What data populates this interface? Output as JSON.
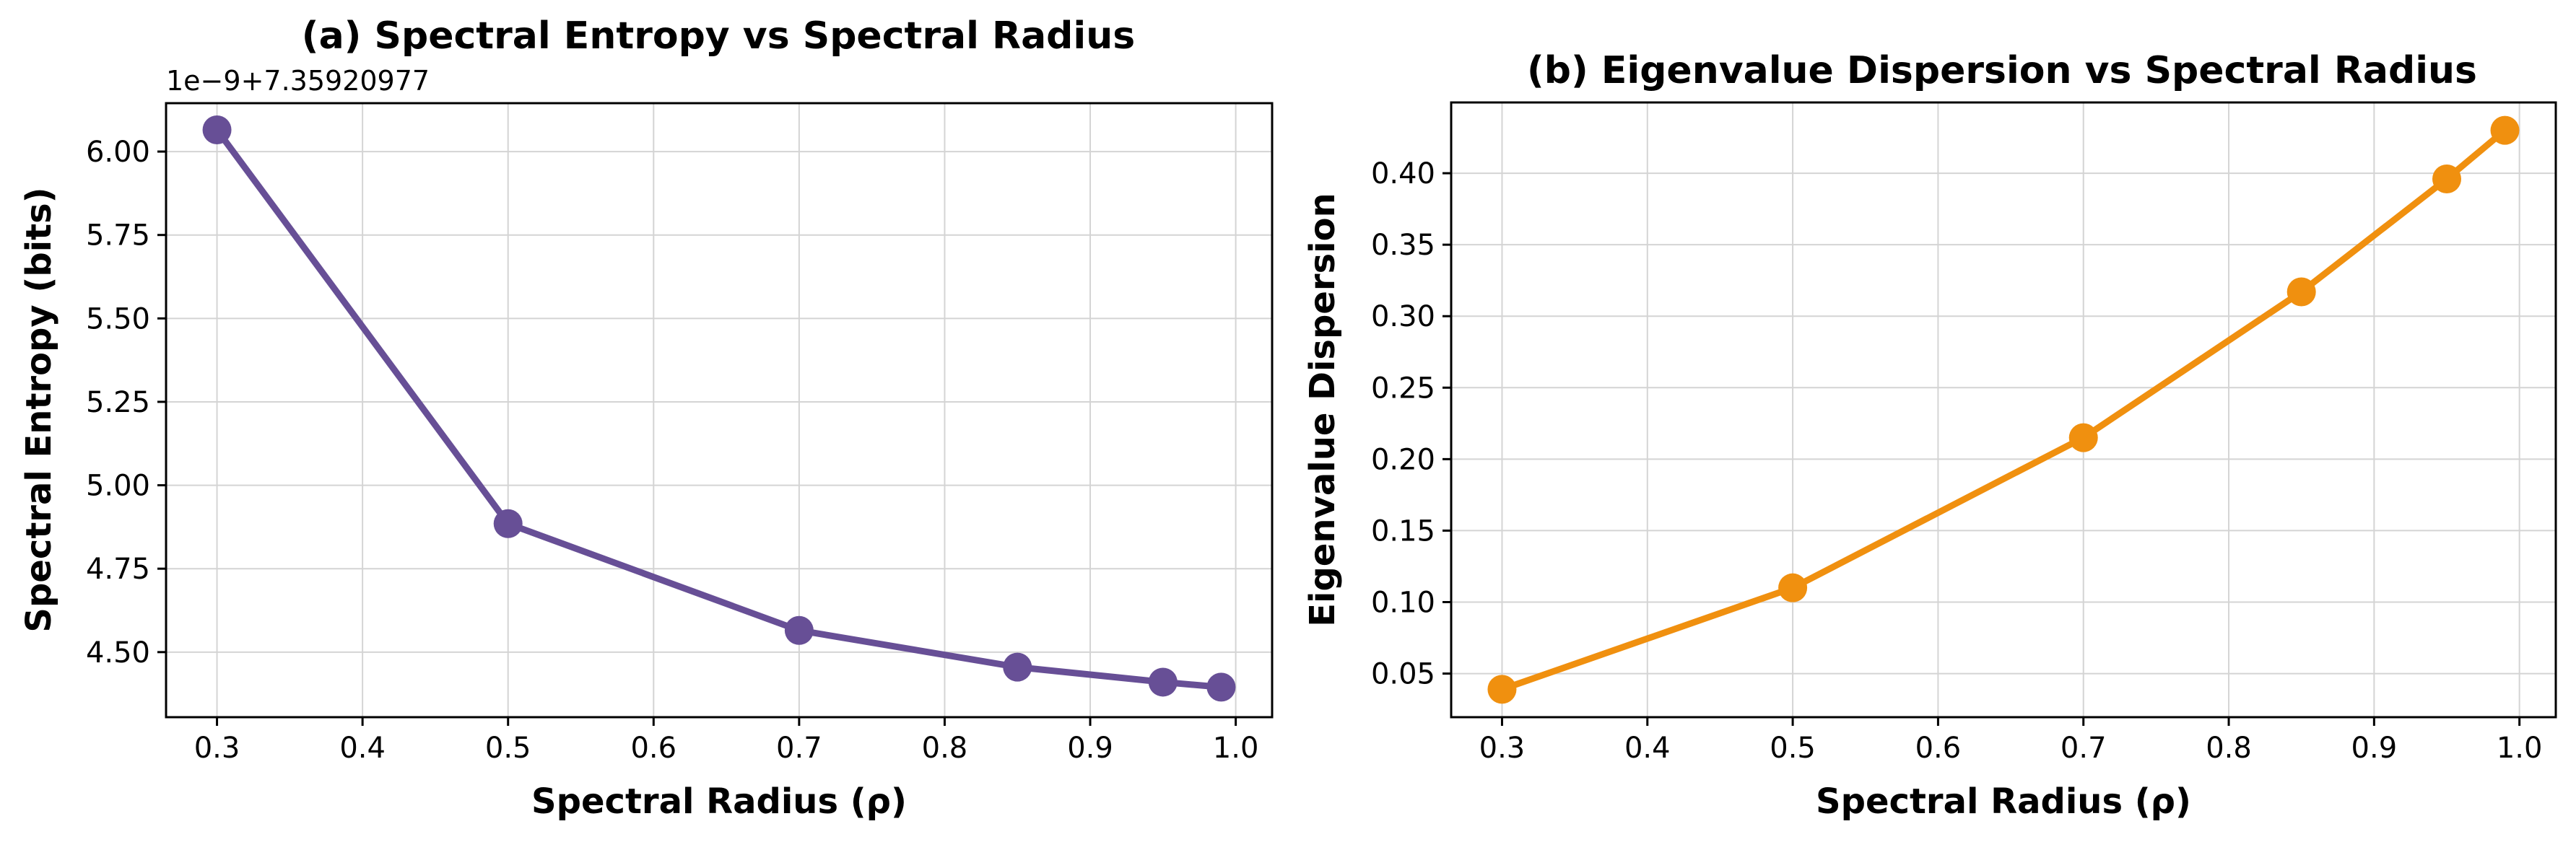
{
  "chart_data": [
    {
      "type": "line",
      "title": "(a) Spectral Entropy vs Spectral Radius",
      "xlabel": "Spectral Radius (ρ)",
      "ylabel": "Spectral Entropy (bits)",
      "offset_text": "1e−9+7.35920977",
      "color": "#674f96",
      "x": [
        0.3,
        0.5,
        0.7,
        0.85,
        0.95,
        0.99
      ],
      "y": [
        6.065,
        4.885,
        4.565,
        4.455,
        4.41,
        4.395
      ],
      "xlim": [
        0.265,
        1.025
      ],
      "ylim": [
        4.305,
        6.145
      ],
      "xticks": [
        0.3,
        0.4,
        0.5,
        0.6,
        0.7,
        0.8,
        0.9,
        1.0
      ],
      "xtick_labels": [
        "0.3",
        "0.4",
        "0.5",
        "0.6",
        "0.7",
        "0.8",
        "0.9",
        "1.0"
      ],
      "yticks": [
        4.5,
        4.75,
        5.0,
        5.25,
        5.5,
        5.75,
        6.0
      ],
      "ytick_labels": [
        "4.50",
        "4.75",
        "5.00",
        "5.25",
        "5.50",
        "5.75",
        "6.00"
      ],
      "grid": true
    },
    {
      "type": "line",
      "title": "(b) Eigenvalue Dispersion vs Spectral Radius",
      "xlabel": "Spectral Radius (ρ)",
      "ylabel": "Eigenvalue Dispersion",
      "color": "#f0900f",
      "x": [
        0.3,
        0.5,
        0.7,
        0.85,
        0.95,
        0.99
      ],
      "y": [
        0.039,
        0.11,
        0.215,
        0.317,
        0.396,
        0.43
      ],
      "xlim": [
        0.265,
        1.025
      ],
      "ylim": [
        0.0195,
        0.4495
      ],
      "xticks": [
        0.3,
        0.4,
        0.5,
        0.6,
        0.7,
        0.8,
        0.9,
        1.0
      ],
      "xtick_labels": [
        "0.3",
        "0.4",
        "0.5",
        "0.6",
        "0.7",
        "0.8",
        "0.9",
        "1.0"
      ],
      "yticks": [
        0.05,
        0.1,
        0.15,
        0.2,
        0.25,
        0.3,
        0.35,
        0.4
      ],
      "ytick_labels": [
        "0.05",
        "0.10",
        "0.15",
        "0.20",
        "0.25",
        "0.30",
        "0.35",
        "0.40"
      ],
      "grid": true
    }
  ]
}
